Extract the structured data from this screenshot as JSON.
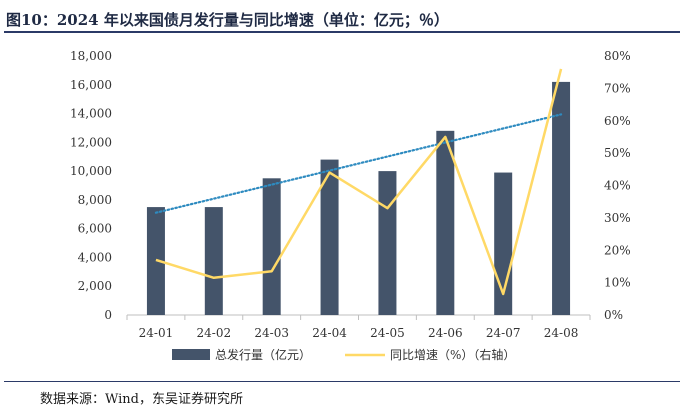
{
  "title": "图10：2024 年以来国债月发行量与同比增速（单位：亿元；％）",
  "source": "数据来源：Wind，东吴证券研究所",
  "chart_data": {
    "type": "bar+line",
    "categories": [
      "24-01",
      "24-02",
      "24-03",
      "24-04",
      "24-05",
      "24-06",
      "24-07",
      "24-08"
    ],
    "series": [
      {
        "name": "总发行量（亿元）",
        "type": "bar",
        "axis": "left",
        "color": "#44546a",
        "values": [
          7500,
          7500,
          9500,
          10800,
          10000,
          12800,
          9900,
          16200
        ]
      },
      {
        "name": "同比增速（%）（右轴）",
        "type": "line",
        "axis": "right",
        "color": "#ffd966",
        "values": [
          17,
          11.5,
          13.5,
          44,
          33,
          55,
          6.5,
          76
        ]
      },
      {
        "type": "trendline",
        "of_series": 0,
        "color": "#2e8bc0",
        "style": "dotted"
      }
    ],
    "y_left": {
      "lim": [
        0,
        18000
      ],
      "ticks": [
        "0",
        "2,000",
        "4,000",
        "6,000",
        "8,000",
        "10,000",
        "12,000",
        "14,000",
        "16,000",
        "18,000"
      ]
    },
    "y_right": {
      "lim": [
        0,
        80
      ],
      "ticks": [
        "0%",
        "10%",
        "20%",
        "30%",
        "40%",
        "50%",
        "60%",
        "70%",
        "80%"
      ]
    },
    "grid": false,
    "legend": "bottom"
  }
}
